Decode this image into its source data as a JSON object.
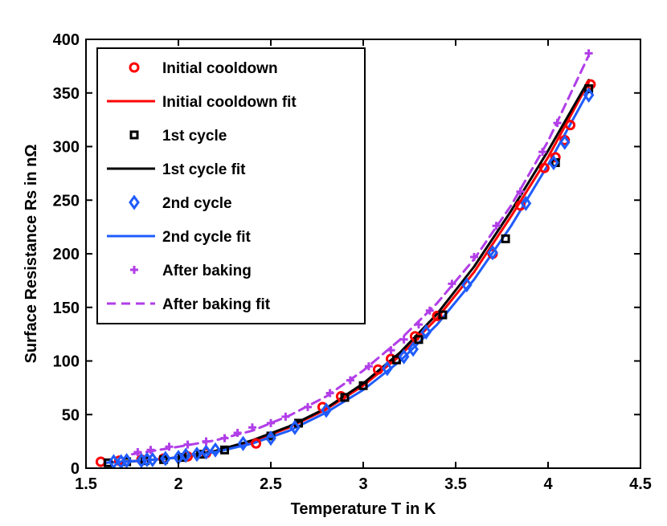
{
  "chart_data": {
    "type": "scatter",
    "title": "",
    "xlabel": "Temperature T in K",
    "ylabel": "Surface Resistance Rs in nΩ",
    "xlim": [
      1.5,
      4.5
    ],
    "ylim": [
      0,
      400
    ],
    "xticks": [
      1.5,
      2,
      2.5,
      3,
      3.5,
      4,
      4.5
    ],
    "xtick_labels": [
      "1.5",
      "2",
      "2.5",
      "3",
      "3.5",
      "4",
      "4.5"
    ],
    "yticks": [
      0,
      50,
      100,
      150,
      200,
      250,
      300,
      350,
      400
    ],
    "ytick_labels": [
      "0",
      "50",
      "100",
      "150",
      "200",
      "250",
      "300",
      "350",
      "400"
    ],
    "grid": false,
    "legend_position": "top-left",
    "series": [
      {
        "name": "Initial cooldown",
        "kind": "markers",
        "marker": "circle",
        "color": "#ff0000",
        "x": [
          1.58,
          1.68,
          1.8,
          1.92,
          2.05,
          2.15,
          2.42,
          2.78,
          2.88,
          3.08,
          3.15,
          3.28,
          3.4,
          3.7,
          3.85,
          3.98,
          4.04,
          4.09,
          4.12,
          4.23
        ],
        "y": [
          6,
          7,
          8,
          9,
          11,
          14,
          23,
          57,
          67,
          92,
          102,
          123,
          142,
          200,
          245,
          280,
          290,
          306,
          320,
          358
        ]
      },
      {
        "name": "Initial cooldown fit",
        "kind": "line",
        "dash": "solid",
        "color": "#ff0000",
        "x": [
          1.6,
          1.8,
          2.0,
          2.2,
          2.4,
          2.6,
          2.8,
          3.0,
          3.2,
          3.4,
          3.6,
          3.8,
          4.0,
          4.22
        ],
        "y": [
          5,
          7,
          10,
          16,
          25,
          38,
          55,
          77,
          105,
          140,
          183,
          235,
          290,
          360
        ]
      },
      {
        "name": "1st cycle",
        "kind": "markers",
        "marker": "square",
        "color": "#000000",
        "x": [
          1.62,
          1.72,
          1.82,
          1.92,
          2.02,
          2.12,
          2.25,
          2.5,
          2.65,
          2.9,
          3.0,
          3.18,
          3.3,
          3.43,
          3.77,
          4.04,
          4.22
        ],
        "y": [
          5,
          6,
          7,
          8,
          10,
          13,
          17,
          30,
          42,
          66,
          77,
          101,
          120,
          143,
          214,
          285,
          354
        ]
      },
      {
        "name": "1st cycle fit",
        "kind": "line",
        "dash": "solid",
        "color": "#000000",
        "x": [
          1.6,
          1.8,
          2.0,
          2.2,
          2.4,
          2.6,
          2.8,
          3.0,
          3.2,
          3.4,
          3.6,
          3.8,
          4.0,
          4.22
        ],
        "y": [
          5,
          7,
          10,
          16,
          26,
          39,
          56,
          79,
          108,
          144,
          188,
          240,
          296,
          362
        ]
      },
      {
        "name": "2nd cycle",
        "kind": "markers",
        "marker": "diamond",
        "color": "#1f5cff",
        "x": [
          1.65,
          1.69,
          1.72,
          1.8,
          1.83,
          1.86,
          1.93,
          2.0,
          2.04,
          2.1,
          2.15,
          2.2,
          2.35,
          2.5,
          2.63,
          2.8,
          3.13,
          3.22,
          3.27,
          3.34,
          3.56,
          3.7,
          3.88,
          4.03,
          4.09,
          4.22
        ],
        "y": [
          6,
          6,
          7,
          7,
          8,
          8,
          9,
          10,
          12,
          13,
          15,
          17,
          23,
          28,
          38,
          54,
          93,
          104,
          111,
          127,
          171,
          201,
          247,
          285,
          304,
          348
        ]
      },
      {
        "name": "2nd cycle fit",
        "kind": "line",
        "dash": "solid",
        "color": "#1f5cff",
        "x": [
          1.6,
          1.8,
          2.0,
          2.2,
          2.4,
          2.6,
          2.8,
          3.0,
          3.2,
          3.4,
          3.6,
          3.8,
          4.0,
          4.22
        ],
        "y": [
          5,
          7,
          10,
          15,
          23,
          35,
          52,
          73,
          100,
          134,
          176,
          226,
          283,
          352
        ]
      },
      {
        "name": "After baking",
        "kind": "markers",
        "marker": "plus",
        "color": "#b13ee8",
        "x": [
          1.78,
          1.85,
          1.95,
          2.05,
          2.15,
          2.25,
          2.32,
          2.4,
          2.5,
          2.58,
          2.7,
          2.82,
          2.93,
          3.03,
          3.15,
          3.22,
          3.3,
          3.36,
          3.48,
          3.6,
          3.72,
          3.85,
          3.97,
          4.05,
          4.22
        ],
        "y": [
          15,
          17,
          20,
          22,
          25,
          28,
          33,
          38,
          42,
          48,
          57,
          70,
          82,
          95,
          110,
          120,
          134,
          147,
          172,
          197,
          226,
          258,
          295,
          322,
          387
        ]
      },
      {
        "name": "After baking fit",
        "kind": "line",
        "dash": "dashed",
        "color": "#b13ee8",
        "x": [
          1.75,
          2.0,
          2.2,
          2.4,
          2.6,
          2.8,
          3.0,
          3.2,
          3.4,
          3.6,
          3.8,
          4.0,
          4.22
        ],
        "y": [
          13,
          20,
          26,
          35,
          49,
          67,
          91,
          120,
          154,
          195,
          245,
          305,
          385
        ]
      }
    ]
  }
}
